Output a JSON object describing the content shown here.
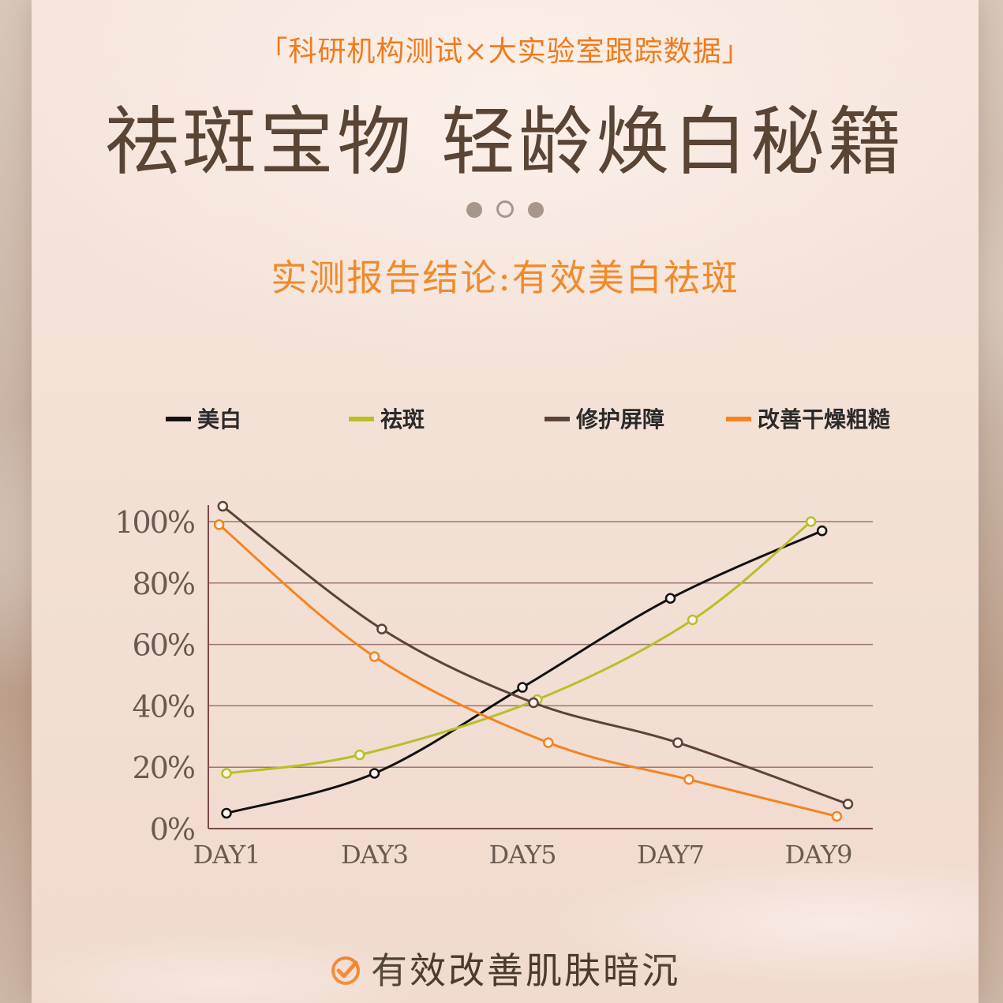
{
  "header": {
    "subtitle": "「科研机构测试×大实验室跟踪数据」",
    "title": "祛斑宝物 轻龄焕白秘籍",
    "conclusion": "实测报告结论:有效美白祛斑"
  },
  "pager": {
    "count": 3,
    "active_index": 1
  },
  "footer": {
    "text": "有效改善肌肤暗沉",
    "icon": "check-circle-icon"
  },
  "colors": {
    "accent_orange": "#f07a1c",
    "title_brown": "#5a4434",
    "series_black": "#111111",
    "series_lime": "#b8bf28",
    "series_brown": "#5b4336",
    "series_orange": "#f5831f",
    "grid": "#8a5a58"
  },
  "chart_data": {
    "type": "line",
    "categories": [
      "DAY1",
      "DAY3",
      "DAY5",
      "DAY7",
      "DAY9"
    ],
    "y_ticks": [
      "0%",
      "20%",
      "40%",
      "60%",
      "80%",
      "100%"
    ],
    "ylim": [
      0,
      100
    ],
    "xlabel": "",
    "ylabel": "",
    "grid": true,
    "legend_position": "top",
    "series": [
      {
        "name": "美白",
        "color": "#111111",
        "x": [
          1,
          3,
          5,
          7,
          9.05
        ],
        "values": [
          5,
          18,
          46,
          75,
          97
        ]
      },
      {
        "name": "祛斑",
        "color": "#b8bf28",
        "x": [
          1,
          2.8,
          5.2,
          7.3,
          8.9
        ],
        "values": [
          18,
          24,
          42,
          68,
          100
        ]
      },
      {
        "name": "修护屏障",
        "color": "#5b4336",
        "x": [
          0.95,
          3.1,
          5.15,
          7.1,
          9.4
        ],
        "values": [
          105,
          65,
          41,
          28,
          8
        ]
      },
      {
        "name": "改善干燥粗糙",
        "color": "#f5831f",
        "x": [
          0.9,
          3,
          5.35,
          7.25,
          9.25
        ],
        "values": [
          99,
          56,
          28,
          16,
          4
        ]
      }
    ]
  }
}
